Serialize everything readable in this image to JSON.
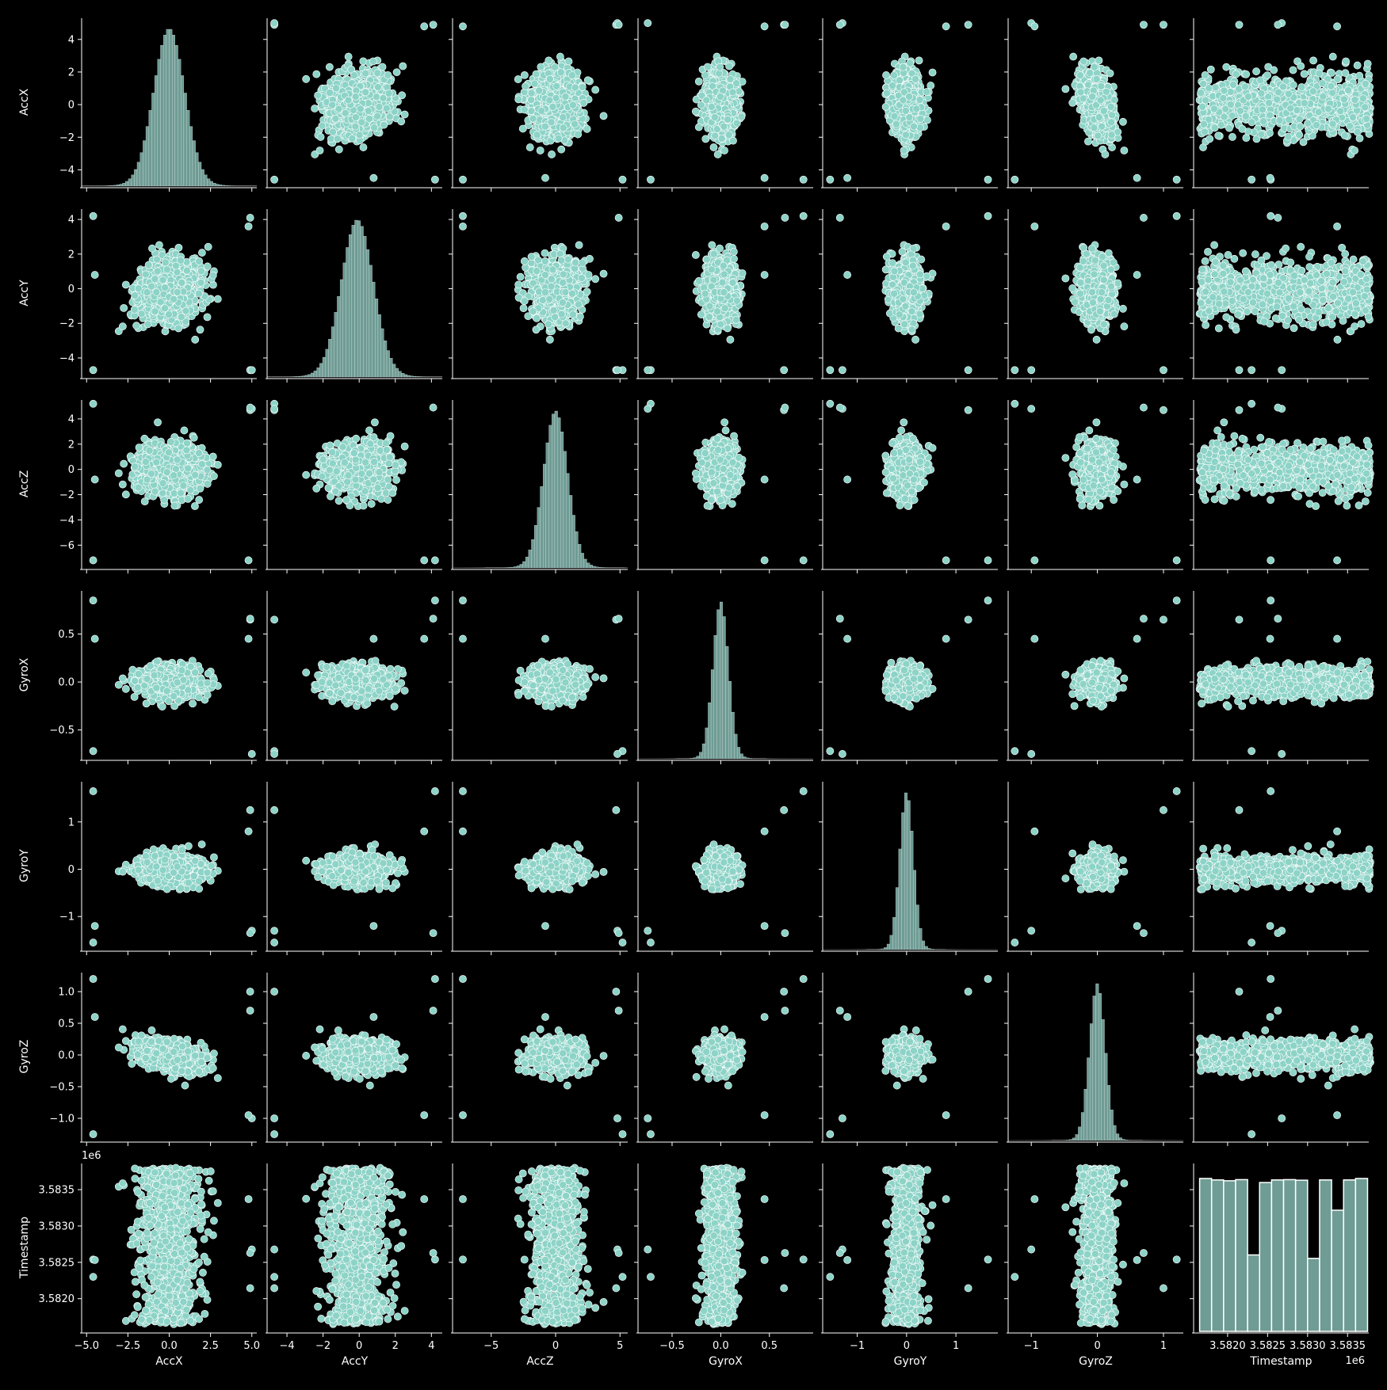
{
  "chart_data": {
    "type": "scatter",
    "subtype": "pairplot",
    "variables": [
      "AccX",
      "AccY",
      "AccZ",
      "GyroX",
      "GyroY",
      "GyroZ",
      "Timestamp"
    ],
    "diagonal": "histogram",
    "colors": {
      "background": "#000000",
      "marker": "#8dd3c7",
      "marker_edge": "#ffffff",
      "hist_fill": "#6f9c95",
      "axis": "#ffffff"
    },
    "axes": {
      "AccX": {
        "range": [
          -5.3,
          5.3
        ],
        "ticks": [
          -5.0,
          -2.5,
          0.0,
          2.5,
          5.0
        ],
        "tick_labels": [
          "−5.0",
          "−2.5",
          "0.0",
          "2.5",
          "5.0"
        ],
        "y_range": [
          -5.0,
          5.3
        ],
        "y_ticks": [
          -4,
          -2,
          0,
          2,
          4
        ],
        "y_tick_labels": [
          "−4",
          "−2",
          "0",
          "2",
          "4"
        ]
      },
      "AccY": {
        "range": [
          -5.1,
          4.6
        ],
        "ticks": [
          -4,
          -2,
          0,
          2,
          4
        ],
        "tick_labels": [
          "−4",
          "−2",
          "0",
          "2",
          "4"
        ],
        "y_range": [
          -5.1,
          4.6
        ],
        "y_ticks": [
          -4,
          -2,
          0,
          2,
          4
        ],
        "y_tick_labels": [
          "−4",
          "−2",
          "0",
          "2",
          "4"
        ]
      },
      "AccZ": {
        "range": [
          -8.0,
          5.6
        ],
        "ticks": [
          -5,
          0,
          5
        ],
        "tick_labels": [
          "−5",
          "0",
          "5"
        ],
        "y_range": [
          -7.8,
          5.5
        ],
        "y_ticks": [
          -6,
          -4,
          -2,
          0,
          2,
          4
        ],
        "y_tick_labels": [
          "−6",
          "−4",
          "−2",
          "0",
          "2",
          "4"
        ]
      },
      "GyroX": {
        "range": [
          -0.85,
          0.95
        ],
        "ticks": [
          -0.5,
          0.0,
          0.5
        ],
        "tick_labels": [
          "−0.5",
          "0.0",
          "0.5"
        ],
        "y_range": [
          -0.8,
          0.95
        ],
        "y_ticks": [
          -0.5,
          0.0,
          0.5
        ],
        "y_tick_labels": [
          "−0.5",
          "0.0",
          "0.5"
        ]
      },
      "GyroY": {
        "range": [
          -1.7,
          1.85
        ],
        "ticks": [
          -1,
          0,
          1
        ],
        "tick_labels": [
          "−1",
          "0",
          "1"
        ],
        "y_range": [
          -1.7,
          1.85
        ],
        "y_ticks": [
          -1,
          0,
          1
        ],
        "y_tick_labels": [
          "−1",
          "0",
          "1"
        ]
      },
      "GyroZ": {
        "range": [
          -1.35,
          1.3
        ],
        "ticks": [
          -1,
          0,
          1
        ],
        "tick_labels": [
          "−1",
          "0",
          "1"
        ],
        "y_range": [
          -1.35,
          1.3
        ],
        "y_ticks": [
          -1.0,
          -0.5,
          0.0,
          0.5,
          1.0
        ],
        "y_tick_labels": [
          "−1.0",
          "−0.5",
          "0.0",
          "0.5",
          "1.0"
        ]
      },
      "Timestamp": {
        "range": [
          3581575,
          3583765
        ],
        "ticks": [
          3582000,
          3582500,
          3583000,
          3583500
        ],
        "tick_labels": [
          "3.5820",
          "3.5825",
          "3.5830",
          "3.5835"
        ],
        "y_range": [
          3581550,
          3583860
        ],
        "y_ticks": [
          3582000,
          3582500,
          3583000,
          3583500
        ],
        "y_tick_labels": [
          "3.5820",
          "3.5825",
          "3.5830",
          "3.5835"
        ],
        "offset_label": "1e6"
      }
    },
    "distributions": {
      "AccX": {
        "mean": 0.0,
        "sd": 0.95
      },
      "AccY": {
        "mean": -0.1,
        "sd": 0.9
      },
      "AccZ": {
        "mean": 0.0,
        "sd": 0.95
      },
      "GyroX": {
        "mean": 0.0,
        "sd": 0.08
      },
      "GyroY": {
        "mean": 0.0,
        "sd": 0.14
      },
      "GyroZ": {
        "mean": 0.0,
        "sd": 0.12
      },
      "Timestamp": {
        "min": 3581650,
        "max": 3583800
      }
    },
    "timestamp_histogram": {
      "bins": [
        3581650,
        3581800,
        3581950,
        3582100,
        3582250,
        3582400,
        3582550,
        3582700,
        3582850,
        3583000,
        3583150,
        3583300,
        3583450,
        3583600,
        3583750
      ],
      "counts": [
        530,
        525,
        522,
        526,
        265,
        516,
        525,
        526,
        524,
        253,
        525,
        420,
        525,
        530
      ]
    },
    "gaps": [
      3582280,
      3582980
    ],
    "outliers": {
      "AccX": [
        -4.6,
        -4.6,
        4.9,
        5.0,
        4.9,
        4.8,
        -4.5
      ],
      "AccY": [
        4.2,
        -4.7,
        -4.7,
        -4.7,
        4.1,
        3.6,
        0.8
      ],
      "AccZ": [
        -7.2,
        5.2,
        4.7,
        4.8,
        4.9,
        -7.2,
        -0.8
      ],
      "GyroX": [
        0.85,
        -0.72,
        0.65,
        -0.75,
        0.66,
        0.45,
        0.45
      ],
      "GyroY": [
        1.65,
        -1.55,
        1.25,
        -1.3,
        -1.35,
        0.8,
        -1.2
      ],
      "GyroZ": [
        1.2,
        -1.25,
        1.0,
        -1.0,
        0.7,
        -0.95,
        0.6
      ]
    }
  }
}
